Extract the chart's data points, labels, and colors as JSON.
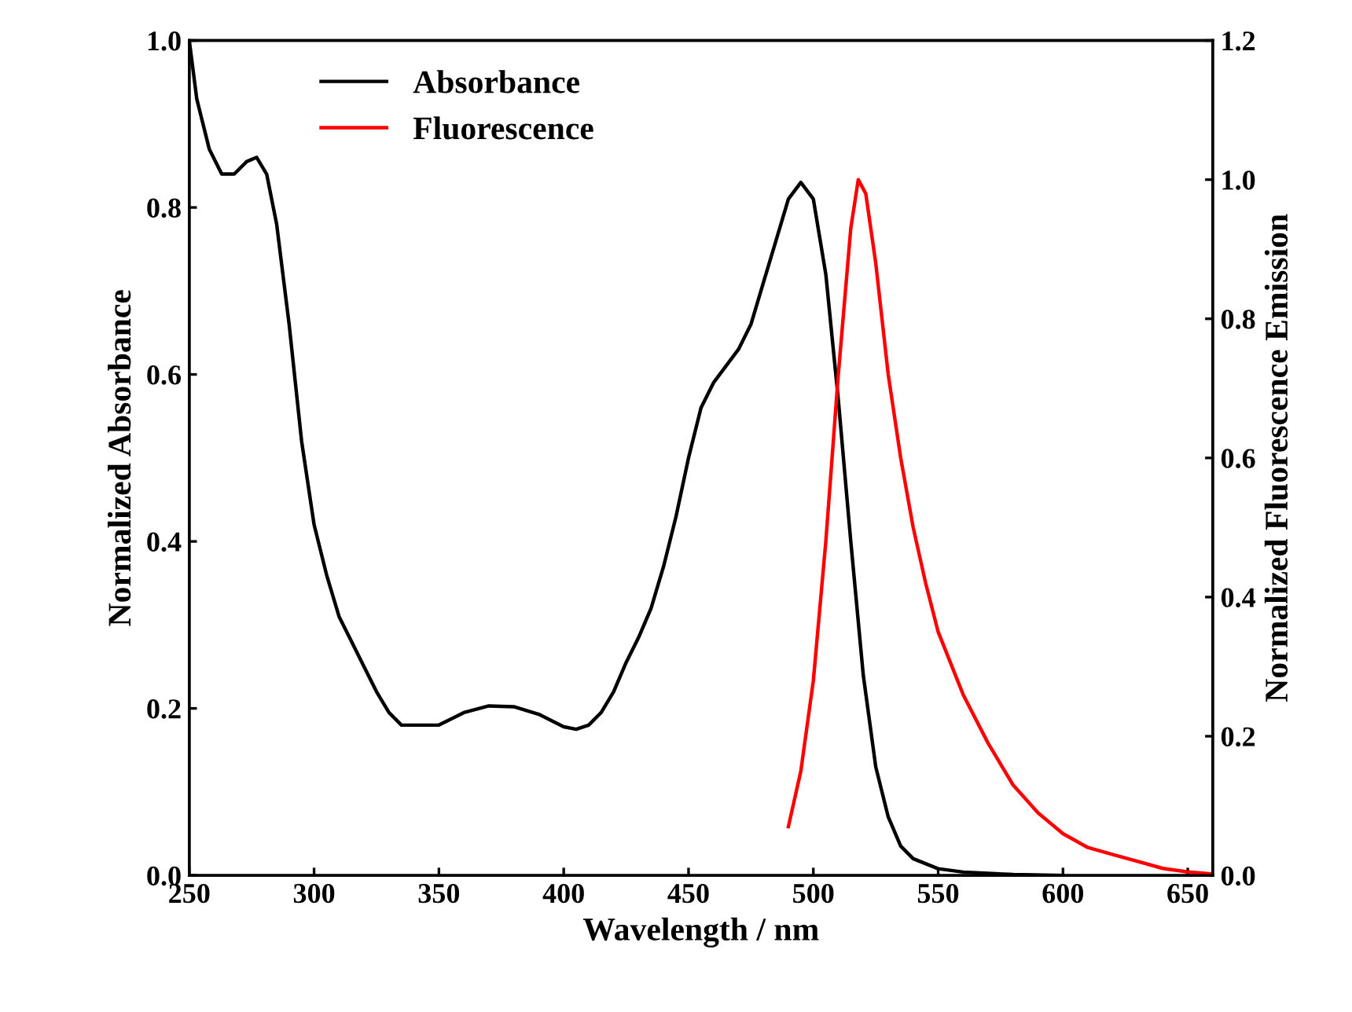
{
  "chart_data": {
    "type": "line",
    "xlabel": "Wavelength / nm",
    "ylabel": "Normalized Absorbance",
    "y2label": "Normalized Fluorescence Emission",
    "xlim": [
      250,
      660
    ],
    "xticks": [
      250,
      300,
      350,
      400,
      450,
      500,
      550,
      600,
      650
    ],
    "ylim": [
      0,
      1.0
    ],
    "yticks": [
      {
        "value": 0,
        "label": "0.0"
      },
      0.2,
      0.4,
      0.6,
      0.8,
      {
        "value": 1,
        "label": "1.0"
      }
    ],
    "y2lim": [
      0,
      1.2
    ],
    "y2ticks": [
      {
        "value": 0,
        "label": "0.0"
      },
      0.2,
      0.4,
      0.6,
      0.8,
      {
        "value": 1,
        "label": "1.0"
      },
      1.2
    ],
    "grid": false,
    "legend": "top left",
    "marker": "none",
    "line_style": "solid",
    "series": [
      {
        "name": "Absorbance",
        "color": "#000000",
        "x": [
          250,
          253,
          258,
          263,
          268,
          273,
          277,
          281,
          285,
          290,
          295,
          300,
          305,
          310,
          315,
          320,
          325,
          330,
          335,
          340,
          350,
          360,
          370,
          380,
          390,
          400,
          405,
          410,
          415,
          420,
          425,
          430,
          435,
          440,
          445,
          450,
          455,
          460,
          465,
          470,
          475,
          480,
          485,
          490,
          495,
          500,
          505,
          510,
          515,
          520,
          525,
          530,
          535,
          540,
          550,
          560,
          580,
          600
        ],
        "values": [
          1.0,
          0.93,
          0.87,
          0.84,
          0.84,
          0.855,
          0.86,
          0.84,
          0.78,
          0.66,
          0.52,
          0.42,
          0.36,
          0.31,
          0.28,
          0.25,
          0.22,
          0.195,
          0.18,
          0.18,
          0.18,
          0.195,
          0.203,
          0.202,
          0.193,
          0.178,
          0.175,
          0.18,
          0.195,
          0.22,
          0.255,
          0.285,
          0.32,
          0.37,
          0.43,
          0.5,
          0.56,
          0.59,
          0.61,
          0.63,
          0.66,
          0.71,
          0.76,
          0.81,
          0.83,
          0.81,
          0.72,
          0.57,
          0.4,
          0.24,
          0.13,
          0.07,
          0.035,
          0.02,
          0.008,
          0.004,
          0.001,
          0.0
        ]
      },
      {
        "name": "Fluorescence",
        "color": "#ff0000",
        "axis": "y2",
        "x": [
          490,
          495,
          500,
          505,
          510,
          515,
          518,
          521,
          525,
          530,
          535,
          540,
          545,
          550,
          560,
          570,
          580,
          590,
          600,
          610,
          620,
          630,
          640,
          650,
          660
        ],
        "values": [
          0.07,
          0.15,
          0.28,
          0.48,
          0.72,
          0.93,
          1.0,
          0.98,
          0.88,
          0.72,
          0.6,
          0.5,
          0.42,
          0.35,
          0.26,
          0.19,
          0.13,
          0.09,
          0.06,
          0.04,
          0.03,
          0.02,
          0.01,
          0.005,
          0.002
        ]
      }
    ]
  }
}
